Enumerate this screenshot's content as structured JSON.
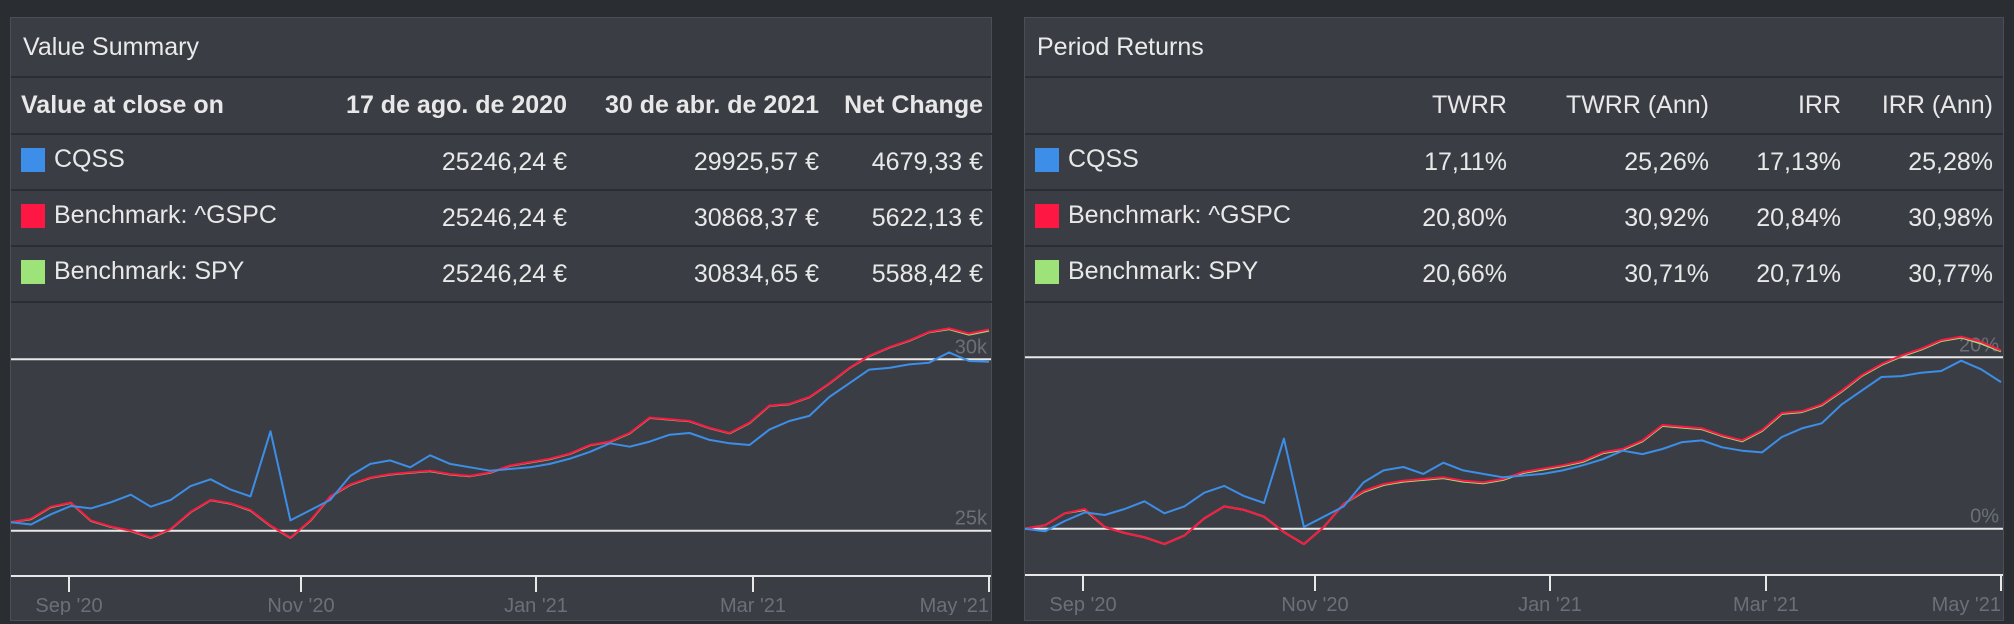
{
  "value_summary": {
    "title": "Value Summary",
    "headers": [
      "Value at close on",
      "17 de ago. de 2020",
      "30 de abr. de 2021",
      "Net Change"
    ],
    "rows": [
      {
        "name": "CQSS",
        "color": "#3d8ee8",
        "start": "25246,24 €",
        "end": "29925,57 €",
        "change": "4679,33 €"
      },
      {
        "name": "Benchmark: ^GSPC",
        "color": "#ff1744",
        "start": "25246,24 €",
        "end": "30868,37 €",
        "change": "5622,13 €"
      },
      {
        "name": "Benchmark: SPY",
        "color": "#9ee27a",
        "start": "25246,24 €",
        "end": "30834,65 €",
        "change": "5588,42 €"
      }
    ]
  },
  "period_returns": {
    "title": "Period Returns",
    "headers": [
      "",
      "TWRR",
      "TWRR (Ann)",
      "IRR",
      "IRR (Ann)"
    ],
    "rows": [
      {
        "name": "CQSS",
        "color": "#3d8ee8",
        "twrr": "17,11%",
        "twrr_ann": "25,26%",
        "irr": "17,13%",
        "irr_ann": "25,28%"
      },
      {
        "name": "Benchmark: ^GSPC",
        "color": "#ff1744",
        "twrr": "20,80%",
        "twrr_ann": "30,92%",
        "irr": "20,84%",
        "irr_ann": "30,98%"
      },
      {
        "name": "Benchmark: SPY",
        "color": "#9ee27a",
        "twrr": "20,66%",
        "twrr_ann": "30,71%",
        "irr": "20,71%",
        "irr_ann": "30,77%"
      }
    ]
  },
  "chart_data": [
    {
      "type": "line",
      "x_tick_labels": [
        "Sep '20",
        "Nov '20",
        "Jan '21",
        "Mar '21",
        "May '21"
      ],
      "y_tick_labels": [
        "25k",
        "30k"
      ],
      "y_ticks": [
        25000,
        30000
      ],
      "ylim": [
        24000,
        31000
      ],
      "x_range": [
        "2020-08-17",
        "2021-04-30"
      ],
      "grid": true,
      "series": [
        {
          "name": "CQSS",
          "color": "#3d8ee8",
          "values": [
            25246,
            25180,
            25480,
            25720,
            25650,
            25830,
            26050,
            25700,
            25900,
            26300,
            26500,
            26200,
            26000,
            27900,
            25300,
            25600,
            25900,
            26600,
            26950,
            27050,
            26850,
            27200,
            26950,
            26850,
            26750,
            26800,
            26850,
            26950,
            27100,
            27300,
            27550,
            27450,
            27600,
            27800,
            27850,
            27650,
            27550,
            27500,
            27950,
            28200,
            28350,
            28900,
            29300,
            29700,
            29750,
            29850,
            29900,
            30200,
            29950,
            29926
          ]
        },
        {
          "name": "Benchmark: ^GSPC",
          "color": "#ff1744",
          "values": [
            25246,
            25350,
            25700,
            25820,
            25300,
            25120,
            25000,
            24800,
            25050,
            25550,
            25900,
            25800,
            25600,
            25150,
            24800,
            25300,
            26000,
            26350,
            26550,
            26650,
            26700,
            26750,
            26650,
            26600,
            26700,
            26900,
            27000,
            27100,
            27250,
            27500,
            27600,
            27850,
            28300,
            28250,
            28200,
            28000,
            27850,
            28150,
            28650,
            28700,
            28900,
            29300,
            29750,
            30100,
            30350,
            30550,
            30800,
            30900,
            30750,
            30868
          ]
        },
        {
          "name": "Benchmark: SPY",
          "color": "#9ee27a",
          "values": [
            25246,
            25340,
            25690,
            25810,
            25290,
            25110,
            24990,
            24790,
            25040,
            25540,
            25890,
            25790,
            25590,
            25140,
            24790,
            25290,
            25990,
            26340,
            26540,
            26640,
            26690,
            26740,
            26640,
            26590,
            26690,
            26890,
            26990,
            27090,
            27240,
            27490,
            27590,
            27840,
            28290,
            28240,
            28190,
            27990,
            27840,
            28140,
            28640,
            28690,
            28890,
            29290,
            29740,
            30090,
            30340,
            30540,
            30790,
            30880,
            30720,
            30835
          ]
        }
      ]
    },
    {
      "type": "line",
      "x_tick_labels": [
        "Sep '20",
        "Nov '20",
        "Jan '21",
        "Mar '21",
        "May '21"
      ],
      "y_tick_labels": [
        "0%",
        "20%"
      ],
      "y_ticks": [
        0,
        20
      ],
      "ylim": [
        -4,
        24
      ],
      "x_range": [
        "2020-08-17",
        "2021-04-30"
      ],
      "grid": true,
      "series": [
        {
          "name": "CQSS",
          "color": "#3d8ee8",
          "values": [
            0,
            -0.3,
            0.9,
            1.9,
            1.6,
            2.3,
            3.2,
            1.8,
            2.6,
            4.2,
            5.0,
            3.8,
            3.0,
            10.5,
            0.2,
            1.4,
            2.6,
            5.4,
            6.8,
            7.2,
            6.4,
            7.7,
            6.8,
            6.4,
            6.0,
            6.2,
            6.4,
            6.8,
            7.4,
            8.1,
            9.1,
            8.7,
            9.3,
            10.1,
            10.3,
            9.5,
            9.1,
            8.9,
            10.7,
            11.7,
            12.3,
            14.5,
            16.1,
            17.7,
            17.8,
            18.2,
            18.4,
            19.6,
            18.6,
            17.1
          ]
        },
        {
          "name": "Benchmark: ^GSPC",
          "color": "#ff1744",
          "values": [
            0,
            0.4,
            1.8,
            2.3,
            0.2,
            -0.5,
            -1.0,
            -1.8,
            -0.8,
            1.2,
            2.6,
            2.2,
            1.4,
            -0.4,
            -1.8,
            0.2,
            2.9,
            4.4,
            5.2,
            5.6,
            5.8,
            6.0,
            5.6,
            5.4,
            5.8,
            6.6,
            7.0,
            7.4,
            7.9,
            8.9,
            9.3,
            10.3,
            12.1,
            11.9,
            11.7,
            10.9,
            10.3,
            11.5,
            13.5,
            13.7,
            14.5,
            16.1,
            17.9,
            19.2,
            20.2,
            21.0,
            22.0,
            22.4,
            21.8,
            20.8
          ]
        },
        {
          "name": "Benchmark: SPY",
          "color": "#9ee27a",
          "values": [
            0,
            0.4,
            1.8,
            2.2,
            0.2,
            -0.5,
            -1.0,
            -1.8,
            -0.8,
            1.2,
            2.6,
            2.2,
            1.4,
            -0.4,
            -1.8,
            0.2,
            2.9,
            4.3,
            5.1,
            5.5,
            5.7,
            5.9,
            5.5,
            5.3,
            5.7,
            6.5,
            6.9,
            7.3,
            7.8,
            8.8,
            9.2,
            10.2,
            12.0,
            11.8,
            11.6,
            10.8,
            10.2,
            11.4,
            13.4,
            13.6,
            14.4,
            16.0,
            17.8,
            19.1,
            20.1,
            20.9,
            21.9,
            22.3,
            21.6,
            20.7
          ]
        }
      ]
    }
  ]
}
